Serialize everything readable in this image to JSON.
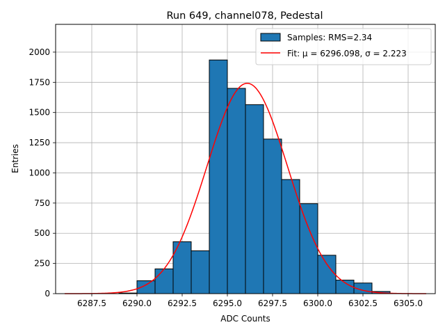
{
  "chart_data": {
    "type": "bar",
    "title": "Run 649, channel078, Pedestal",
    "xlabel": "ADC Counts",
    "ylabel": "Entries",
    "xlim": [
      6285.5,
      6306.5
    ],
    "ylim": [
      0,
      2230
    ],
    "xticks": [
      6287.5,
      6290.0,
      6292.5,
      6295.0,
      6297.5,
      6300.0,
      6302.5,
      6305.0
    ],
    "xtick_labels": [
      "6287.5",
      "6290.0",
      "6292.5",
      "6295.0",
      "6297.5",
      "6300.0",
      "6302.5",
      "6305.0"
    ],
    "yticks": [
      0,
      250,
      500,
      750,
      1000,
      1250,
      1500,
      1750,
      2000
    ],
    "ytick_labels": [
      "0",
      "250",
      "500",
      "750",
      "1000",
      "1250",
      "1500",
      "1750",
      "2000"
    ],
    "grid": true,
    "legend_position": "top-right",
    "bins": [
      {
        "x0": 6289,
        "x1": 6290,
        "count": 5
      },
      {
        "x0": 6290,
        "x1": 6291,
        "count": 107
      },
      {
        "x0": 6291,
        "x1": 6292,
        "count": 205
      },
      {
        "x0": 6292,
        "x1": 6293,
        "count": 430
      },
      {
        "x0": 6293,
        "x1": 6294,
        "count": 355
      },
      {
        "x0": 6294,
        "x1": 6295,
        "count": 1935
      },
      {
        "x0": 6295,
        "x1": 6296,
        "count": 1700
      },
      {
        "x0": 6296,
        "x1": 6297,
        "count": 1565
      },
      {
        "x0": 6297,
        "x1": 6298,
        "count": 1280
      },
      {
        "x0": 6298,
        "x1": 6299,
        "count": 945
      },
      {
        "x0": 6299,
        "x1": 6300,
        "count": 745
      },
      {
        "x0": 6300,
        "x1": 6301,
        "count": 318
      },
      {
        "x0": 6301,
        "x1": 6302,
        "count": 112
      },
      {
        "x0": 6302,
        "x1": 6303,
        "count": 88
      },
      {
        "x0": 6303,
        "x1": 6304,
        "count": 18
      }
    ],
    "fit": {
      "mu": 6296.098,
      "sigma": 2.223,
      "peak": 1742,
      "x_range": [
        6286,
        6306
      ]
    },
    "series": [
      {
        "name": "Samples: RMS=2.34",
        "kind": "histogram",
        "color": "#1f77b4",
        "edge_color": "#000000"
      },
      {
        "name": "Fit: μ = 6296.098, σ = 2.223",
        "kind": "line",
        "color": "#ff0000"
      }
    ]
  }
}
